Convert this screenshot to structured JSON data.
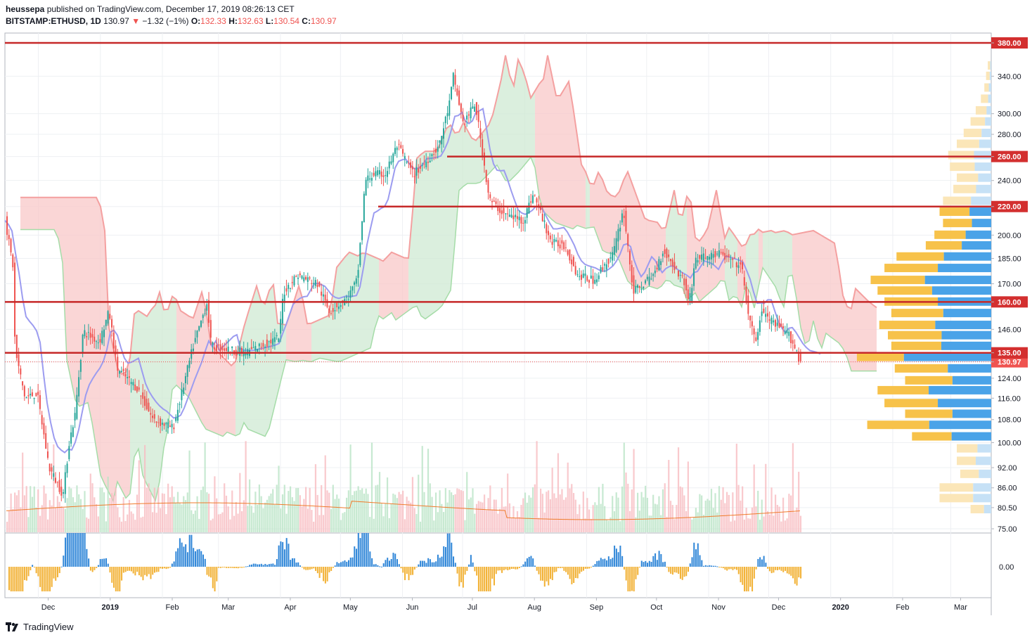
{
  "header": {
    "user": "heussepa",
    "published_text": "published on TradingView.com, December 17, 2019 08:26:13 CET",
    "symbol": "BITSTAMP:ETHUSD",
    "interval": "1D",
    "last": "130.97",
    "change": "−1.32 (−1%)",
    "o_label": "O:",
    "o": "132.33",
    "h_label": "H:",
    "h": "132.63",
    "l_label": "L:",
    "l": "130.54",
    "c_label": "C:",
    "c": "130.97"
  },
  "footer": {
    "brand": "TradingView"
  },
  "chart_data": {
    "type": "line",
    "y_scale": "log",
    "ylim": [
      75,
      380
    ],
    "y_ticks": [
      75,
      80.5,
      86,
      92,
      100,
      108,
      116,
      124,
      130.97,
      135,
      146,
      160,
      170,
      185,
      200,
      220,
      240,
      260,
      280,
      300,
      340,
      380
    ],
    "y_tick_labels": [
      "75.00",
      "80.50",
      "86.00",
      "92.00",
      "100.00",
      "108.00",
      "116.00",
      "124.00",
      "130.97",
      "135.00",
      "146.00",
      "160.00",
      "170.00",
      "185.00",
      "200.00",
      "220.00",
      "240.00",
      "260.00",
      "280.00",
      "300.00",
      "340.00",
      "380.00"
    ],
    "highlighted_labels": [
      "380.00",
      "260.00",
      "220.00",
      "160.00",
      "135.00",
      "130.97"
    ],
    "x_tick_labels": [
      "Dec",
      "2019",
      "Feb",
      "Mar",
      "Apr",
      "May",
      "Jun",
      "Jul",
      "Aug",
      "Sep",
      "Oct",
      "Nov",
      "Dec",
      "2020",
      "Feb",
      "Mar"
    ],
    "bold_x_tick_labels": [
      "2019",
      "2020"
    ],
    "horizontal_levels": [
      380,
      260,
      220,
      160,
      135
    ],
    "last_price": 130.97,
    "price_path": [
      {
        "date": "2018-11-15",
        "close": 210
      },
      {
        "date": "2018-11-19",
        "close": 180
      },
      {
        "date": "2018-11-20",
        "close": 136
      },
      {
        "date": "2018-11-25",
        "close": 116
      },
      {
        "date": "2018-12-01",
        "close": 118
      },
      {
        "date": "2018-12-07",
        "close": 92
      },
      {
        "date": "2018-12-14",
        "close": 84
      },
      {
        "date": "2018-12-17",
        "close": 100
      },
      {
        "date": "2018-12-20",
        "close": 110
      },
      {
        "date": "2018-12-24",
        "close": 145
      },
      {
        "date": "2019-01-01",
        "close": 140
      },
      {
        "date": "2019-01-06",
        "close": 155
      },
      {
        "date": "2019-01-10",
        "close": 128
      },
      {
        "date": "2019-01-20",
        "close": 120
      },
      {
        "date": "2019-01-28",
        "close": 108
      },
      {
        "date": "2019-02-07",
        "close": 105
      },
      {
        "date": "2019-02-17",
        "close": 138
      },
      {
        "date": "2019-02-24",
        "close": 160
      },
      {
        "date": "2019-02-26",
        "close": 138
      },
      {
        "date": "2019-03-15",
        "close": 135
      },
      {
        "date": "2019-04-01",
        "close": 142
      },
      {
        "date": "2019-04-03",
        "close": 165
      },
      {
        "date": "2019-04-10",
        "close": 175
      },
      {
        "date": "2019-04-20",
        "close": 170
      },
      {
        "date": "2019-04-26",
        "close": 155
      },
      {
        "date": "2019-05-05",
        "close": 162
      },
      {
        "date": "2019-05-10",
        "close": 172
      },
      {
        "date": "2019-05-14",
        "close": 240
      },
      {
        "date": "2019-05-18",
        "close": 245
      },
      {
        "date": "2019-05-24",
        "close": 245
      },
      {
        "date": "2019-05-30",
        "close": 270
      },
      {
        "date": "2019-06-07",
        "close": 245
      },
      {
        "date": "2019-06-13",
        "close": 255
      },
      {
        "date": "2019-06-20",
        "close": 270
      },
      {
        "date": "2019-06-25",
        "close": 310
      },
      {
        "date": "2019-06-27",
        "close": 340
      },
      {
        "date": "2019-07-02",
        "close": 290
      },
      {
        "date": "2019-07-08",
        "close": 310
      },
      {
        "date": "2019-07-15",
        "close": 225
      },
      {
        "date": "2019-07-22",
        "close": 215
      },
      {
        "date": "2019-08-01",
        "close": 210
      },
      {
        "date": "2019-08-06",
        "close": 230
      },
      {
        "date": "2019-08-15",
        "close": 195
      },
      {
        "date": "2019-08-22",
        "close": 193
      },
      {
        "date": "2019-08-28",
        "close": 175
      },
      {
        "date": "2019-09-05",
        "close": 172
      },
      {
        "date": "2019-09-15",
        "close": 188
      },
      {
        "date": "2019-09-20",
        "close": 218
      },
      {
        "date": "2019-09-25",
        "close": 165
      },
      {
        "date": "2019-10-05",
        "close": 175
      },
      {
        "date": "2019-10-10",
        "close": 190
      },
      {
        "date": "2019-10-20",
        "close": 172
      },
      {
        "date": "2019-10-23",
        "close": 160
      },
      {
        "date": "2019-10-26",
        "close": 185
      },
      {
        "date": "2019-11-07",
        "close": 188
      },
      {
        "date": "2019-11-18",
        "close": 180
      },
      {
        "date": "2019-11-22",
        "close": 150
      },
      {
        "date": "2019-11-25",
        "close": 140
      },
      {
        "date": "2019-11-28",
        "close": 155
      },
      {
        "date": "2019-12-05",
        "close": 148
      },
      {
        "date": "2019-12-12",
        "close": 143
      },
      {
        "date": "2019-12-16",
        "close": 135
      },
      {
        "date": "2019-12-17",
        "close": 130.97
      }
    ],
    "volume_profile": [
      {
        "price": 352,
        "total": 0.02,
        "buy": 0.3
      },
      {
        "price": 340,
        "total": 0.03,
        "buy": 0.3
      },
      {
        "price": 327,
        "total": 0.04,
        "buy": 0.35
      },
      {
        "price": 315,
        "total": 0.06,
        "buy": 0.3
      },
      {
        "price": 303,
        "total": 0.09,
        "buy": 0.3
      },
      {
        "price": 292,
        "total": 0.12,
        "buy": 0.3
      },
      {
        "price": 281,
        "total": 0.16,
        "buy": 0.35
      },
      {
        "price": 271,
        "total": 0.2,
        "buy": 0.35
      },
      {
        "price": 261,
        "total": 0.25,
        "buy": 0.4
      },
      {
        "price": 251,
        "total": 0.24,
        "buy": 0.4
      },
      {
        "price": 242,
        "total": 0.2,
        "buy": 0.38
      },
      {
        "price": 233,
        "total": 0.22,
        "buy": 0.4
      },
      {
        "price": 224,
        "total": 0.28,
        "buy": 0.42
      },
      {
        "price": 216,
        "total": 0.3,
        "buy": 0.42
      },
      {
        "price": 208,
        "total": 0.28,
        "buy": 0.4
      },
      {
        "price": 200,
        "total": 0.33,
        "buy": 0.45
      },
      {
        "price": 193,
        "total": 0.38,
        "buy": 0.45
      },
      {
        "price": 186,
        "total": 0.55,
        "buy": 0.5
      },
      {
        "price": 179,
        "total": 0.62,
        "buy": 0.5
      },
      {
        "price": 172,
        "total": 0.7,
        "buy": 0.55
      },
      {
        "price": 166,
        "total": 0.66,
        "buy": 0.52
      },
      {
        "price": 160,
        "total": 0.62,
        "buy": 0.5
      },
      {
        "price": 154,
        "total": 0.58,
        "buy": 0.48
      },
      {
        "price": 148,
        "total": 0.65,
        "buy": 0.5
      },
      {
        "price": 143,
        "total": 0.6,
        "buy": 0.48
      },
      {
        "price": 138,
        "total": 0.58,
        "buy": 0.5
      },
      {
        "price": 133,
        "total": 0.78,
        "buy": 0.65
      },
      {
        "price": 128,
        "total": 0.56,
        "buy": 0.45
      },
      {
        "price": 123,
        "total": 0.5,
        "buy": 0.45
      },
      {
        "price": 119,
        "total": 0.66,
        "buy": 0.55
      },
      {
        "price": 114,
        "total": 0.62,
        "buy": 0.5
      },
      {
        "price": 110,
        "total": 0.5,
        "buy": 0.45
      },
      {
        "price": 106,
        "total": 0.72,
        "buy": 0.5
      },
      {
        "price": 102,
        "total": 0.46,
        "buy": 0.5
      },
      {
        "price": 98,
        "total": 0.2,
        "buy": 0.4
      },
      {
        "price": 94,
        "total": 0.2,
        "buy": 0.45
      },
      {
        "price": 90,
        "total": 0.18,
        "buy": 0.4
      },
      {
        "price": 86,
        "total": 0.3,
        "buy": 0.35
      },
      {
        "price": 83,
        "total": 0.3,
        "buy": 0.35
      },
      {
        "price": 80,
        "total": 0.12,
        "buy": 0.35
      }
    ]
  },
  "colors": {
    "level_line": "#c62828",
    "label_bg": "#d32f2f",
    "up": "#26a69a",
    "down": "#ef5350",
    "tenkan": "#9c9cf0",
    "kumo_bear": "#f8c8c8",
    "kumo_bear_edge": "#f4a0a0",
    "kumo_bull": "#cfe9d3",
    "kumo_bull_edge": "#a5dca8",
    "vp_buy": "#4aa3e8",
    "vp_sell": "#f7c24a",
    "vp_buy_faint": "#c6e1f6",
    "vp_sell_faint": "#fbe6b8",
    "osc_pos": "#2f86d8",
    "osc_neg": "#f2b134",
    "volume_ma": "#f07b2b"
  }
}
